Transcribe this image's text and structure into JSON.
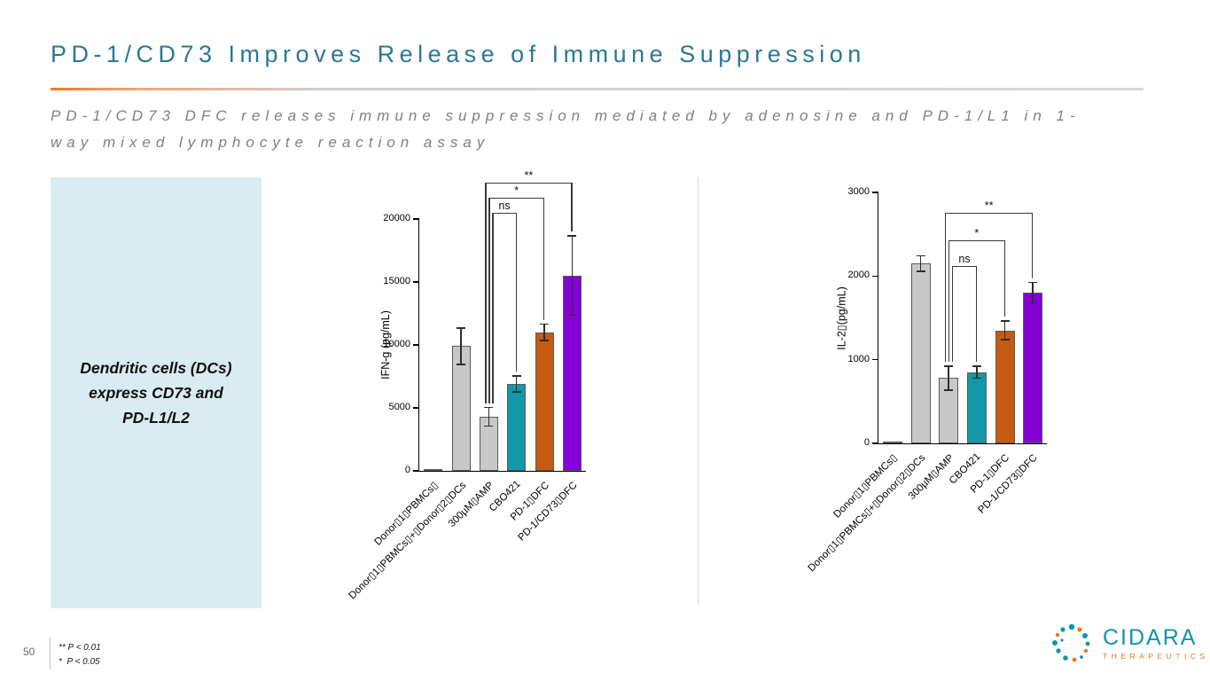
{
  "slide": {
    "title": "PD-1/CD73 Improves Release of Immune Suppression",
    "subtitle_lines": [
      "PD-1/CD73 DFC releases immune suppression mediated by adenosine and PD-1/L1 in 1-",
      "way mixed lymphocyte reaction assay"
    ],
    "callout": {
      "lines": [
        "Dendritic cells (DCs)",
        "express CD73 and",
        "PD-L1/L2"
      ]
    },
    "page_number": "50",
    "footnotes": [
      "** P < 0.01",
      "*  P < 0.05"
    ],
    "logo": {
      "name": "CIDARA",
      "tagline": "THERAPEUTICS"
    }
  },
  "colors": {
    "title_teal": "#2a7896",
    "accent_orange": "#e87a29",
    "callout_bg": "#d8ecf2",
    "bar_gray": "#c8c8c8",
    "bar_teal": "#1497a8",
    "bar_orange": "#c55a11",
    "bar_purple": "#8400d7",
    "logo_teal": "#1193ad",
    "logo_orange": "#e87722"
  },
  "chart_data": [
    {
      "type": "bar",
      "title": "",
      "xlabel": "",
      "ylabel": "IFN-g (pg/mL)",
      "ylim": [
        0,
        20000
      ],
      "yticks": [
        0,
        5000,
        10000,
        15000,
        20000
      ],
      "grid": false,
      "legend": "none",
      "categories": [
        "Donor▯1▯PBMCs▯",
        "Donor▯1▯PBMCs▯+▯Donor▯2▯DCs",
        "300µM▯AMP",
        "CBO421",
        "PD-1▯DFC",
        "PD-1/CD73▯DFC"
      ],
      "values": [
        100,
        9900,
        4300,
        6900,
        11000,
        15500
      ],
      "errors": [
        60,
        1500,
        800,
        700,
        700,
        3200
      ],
      "bar_colors": [
        "#c8c8c8",
        "#c8c8c8",
        "#c8c8c8",
        "#1497a8",
        "#c55a11",
        "#8400d7"
      ],
      "significance": [
        {
          "label": "ns",
          "from": 2,
          "to": 3,
          "y": 20500
        },
        {
          "label": "*",
          "from": 2,
          "to": 4,
          "y": 21700
        },
        {
          "label": "**",
          "from": 2,
          "to": 5,
          "y": 22900
        }
      ]
    },
    {
      "type": "bar",
      "title": "",
      "xlabel": "",
      "ylabel": "IL-2▯(pg/mL)",
      "ylim": [
        0,
        3000
      ],
      "yticks": [
        0,
        1000,
        2000,
        3000
      ],
      "grid": false,
      "legend": "none",
      "categories": [
        "Donor▯1▯PBMCs▯",
        "Donor▯1▯PBMCs▯+▯Donor▯2▯DCs",
        "300µM▯AMP",
        "CBO421",
        "PD-1▯DFC",
        "PD-1/CD73▯DFC"
      ],
      "values": [
        10,
        2150,
        780,
        850,
        1350,
        1800
      ],
      "errors": [
        5,
        100,
        150,
        80,
        120,
        130
      ],
      "bar_colors": [
        "#c8c8c8",
        "#c8c8c8",
        "#c8c8c8",
        "#1497a8",
        "#c55a11",
        "#8400d7"
      ],
      "significance": [
        {
          "label": "ns",
          "from": 2,
          "to": 3,
          "y": 2120
        },
        {
          "label": "*",
          "from": 2,
          "to": 4,
          "y": 2430
        },
        {
          "label": "**",
          "from": 2,
          "to": 5,
          "y": 2760
        }
      ]
    }
  ]
}
